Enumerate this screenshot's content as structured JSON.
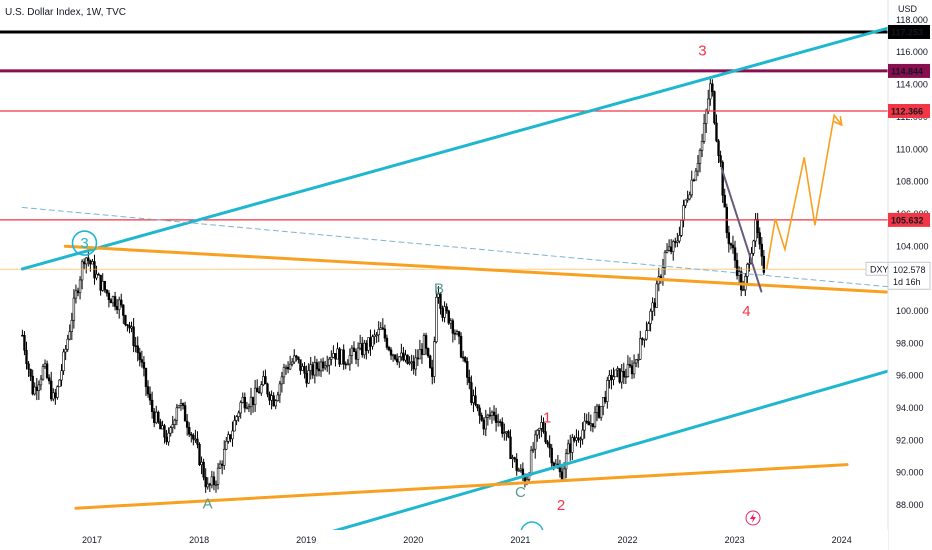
{
  "header": {
    "title": "U.S. Dollar Index, 1W, TVC"
  },
  "colors": {
    "background": "#ffffff",
    "candle_up": "#ffffff",
    "candle_down": "#000000",
    "channel": "#1fb7cf",
    "orange": "#f7a021",
    "red_level": "#f23645",
    "maroon_level": "#880e4f",
    "black_level": "#000000",
    "wave_red": "#f23645",
    "wave_teal": "#5a9a8f",
    "projection": "#f7a021",
    "grey_trend": "#6b5b7b",
    "dashed": "#7fb2cf"
  },
  "chart_data": {
    "type": "candlestick",
    "symbol": "DXY",
    "current_price": "102.578",
    "countdown": "1d 16h",
    "y_axis_unit": "USD",
    "ylim": [
      86.5,
      119.5
    ],
    "xlim": [
      2016.35,
      2024.6
    ],
    "y_ticks": [
      "88.000",
      "90.000",
      "92.000",
      "94.000",
      "96.000",
      "98.000",
      "100.000",
      "102.000",
      "104.000",
      "106.000",
      "108.000",
      "110.000",
      "112.000",
      "114.000",
      "116.000",
      "118.000"
    ],
    "x_ticks": [
      "2017",
      "2018",
      "2019",
      "2020",
      "2021",
      "2022",
      "2023",
      "2024"
    ],
    "price_levels": [
      {
        "label": "117.253",
        "value": 117.253,
        "color": "#000000"
      },
      {
        "label": "114.844",
        "value": 114.844,
        "color": "#880e4f"
      },
      {
        "label": "112.366",
        "value": 112.366,
        "color": "#f23645"
      },
      {
        "label": "105.632",
        "value": 105.632,
        "color": "#f23645"
      }
    ],
    "price_path": [
      [
        2016.35,
        98.5
      ],
      [
        2016.45,
        95.0
      ],
      [
        2016.55,
        96.5
      ],
      [
        2016.65,
        94.3
      ],
      [
        2016.75,
        97.5
      ],
      [
        2016.85,
        101.0
      ],
      [
        2016.93,
        103.5
      ],
      [
        2016.98,
        103.0
      ],
      [
        2017.05,
        102.0
      ],
      [
        2017.15,
        101.0
      ],
      [
        2017.25,
        100.5
      ],
      [
        2017.35,
        99.0
      ],
      [
        2017.45,
        97.0
      ],
      [
        2017.55,
        94.0
      ],
      [
        2017.65,
        92.5
      ],
      [
        2017.72,
        92.0
      ],
      [
        2017.8,
        94.5
      ],
      [
        2017.9,
        93.0
      ],
      [
        2018.0,
        91.0
      ],
      [
        2018.08,
        89.0
      ],
      [
        2018.15,
        89.5
      ],
      [
        2018.3,
        92.5
      ],
      [
        2018.4,
        94.5
      ],
      [
        2018.5,
        94.5
      ],
      [
        2018.6,
        95.5
      ],
      [
        2018.7,
        94.5
      ],
      [
        2018.8,
        96.5
      ],
      [
        2018.9,
        97.0
      ],
      [
        2019.0,
        96.0
      ],
      [
        2019.1,
        96.5
      ],
      [
        2019.25,
        97.5
      ],
      [
        2019.35,
        97.0
      ],
      [
        2019.5,
        97.5
      ],
      [
        2019.6,
        98.0
      ],
      [
        2019.7,
        98.8
      ],
      [
        2019.8,
        97.5
      ],
      [
        2019.9,
        97.0
      ],
      [
        2020.0,
        96.5
      ],
      [
        2020.1,
        98.0
      ],
      [
        2020.18,
        95.5
      ],
      [
        2020.22,
        102.0
      ],
      [
        2020.27,
        100.0
      ],
      [
        2020.35,
        99.5
      ],
      [
        2020.45,
        97.5
      ],
      [
        2020.55,
        94.5
      ],
      [
        2020.65,
        93.0
      ],
      [
        2020.75,
        93.8
      ],
      [
        2020.85,
        92.5
      ],
      [
        2020.95,
        90.5
      ],
      [
        2021.0,
        90.0
      ],
      [
        2021.05,
        89.5
      ],
      [
        2021.12,
        91.5
      ],
      [
        2021.2,
        93.0
      ],
      [
        2021.25,
        92.0
      ],
      [
        2021.32,
        90.5
      ],
      [
        2021.38,
        89.8
      ],
      [
        2021.45,
        91.5
      ],
      [
        2021.55,
        92.5
      ],
      [
        2021.65,
        93.0
      ],
      [
        2021.75,
        94.0
      ],
      [
        2021.85,
        96.0
      ],
      [
        2021.95,
        96.0
      ],
      [
        2022.05,
        96.5
      ],
      [
        2022.15,
        98.5
      ],
      [
        2022.25,
        100.5
      ],
      [
        2022.35,
        103.5
      ],
      [
        2022.45,
        104.0
      ],
      [
        2022.55,
        107.0
      ],
      [
        2022.62,
        108.5
      ],
      [
        2022.7,
        110.5
      ],
      [
        2022.75,
        113.0
      ],
      [
        2022.78,
        114.1
      ],
      [
        2022.82,
        111.5
      ],
      [
        2022.87,
        109.0
      ],
      [
        2022.92,
        105.0
      ],
      [
        2022.97,
        104.0
      ],
      [
        2023.03,
        102.5
      ],
      [
        2023.08,
        101.0
      ],
      [
        2023.14,
        103.5
      ],
      [
        2023.2,
        105.3
      ],
      [
        2023.25,
        103.0
      ],
      [
        2023.28,
        102.6
      ]
    ],
    "annotations": {
      "waves": [
        {
          "label": "3",
          "x": 2016.93,
          "y": 104.2,
          "color": "#1fb7cf",
          "circled": true
        },
        {
          "label": "B",
          "x": 2020.24,
          "y": 101.4,
          "color": "#5a9a8f"
        },
        {
          "label": "A",
          "x": 2018.08,
          "y": 88.1,
          "color": "#5a9a8f"
        },
        {
          "label": "C",
          "x": 2021.0,
          "y": 88.8,
          "color": "#5a9a8f"
        },
        {
          "label": "1",
          "x": 2021.25,
          "y": 93.4,
          "color": "#f23645"
        },
        {
          "label": "2",
          "x": 2021.38,
          "y": 88.0,
          "color": "#f23645"
        },
        {
          "label": "3",
          "x": 2022.7,
          "y": 116.1,
          "color": "#f23645"
        },
        {
          "label": "4",
          "x": 2023.11,
          "y": 100.0,
          "color": "#f23645"
        }
      ],
      "trendlines": [
        {
          "name": "upper-channel",
          "color": "#1fb7cf",
          "width": 3,
          "points": [
            [
              2016.35,
              102.6
            ],
            [
              2024.6,
              117.8
            ]
          ]
        },
        {
          "name": "lower-channel",
          "color": "#1fb7cf",
          "width": 3,
          "points": [
            [
              2018.95,
              85.8
            ],
            [
              2024.6,
              96.6
            ]
          ]
        },
        {
          "name": "orange-support",
          "color": "#f7a021",
          "width": 3,
          "points": [
            [
              2016.75,
              104.0
            ],
            [
              2024.6,
              101.1
            ]
          ]
        },
        {
          "name": "orange-bottom",
          "color": "#f7a021",
          "width": 3,
          "points": [
            [
              2016.85,
              87.8
            ],
            [
              2024.05,
              90.5
            ]
          ]
        },
        {
          "name": "grey-down",
          "color": "#6b5b7b",
          "width": 2,
          "points": [
            [
              2022.88,
              108.8
            ],
            [
              2023.25,
              101.2
            ]
          ]
        },
        {
          "name": "dashed-trend",
          "color": "#7fb2cf",
          "width": 1,
          "dashed": true,
          "points": [
            [
              2016.35,
              106.4
            ],
            [
              2024.6,
              101.4
            ]
          ]
        }
      ],
      "projection": [
        [
          2023.3,
          102.6
        ],
        [
          2023.38,
          105.7
        ],
        [
          2023.47,
          103.8
        ],
        [
          2023.65,
          109.5
        ],
        [
          2023.75,
          105.3
        ],
        [
          2023.93,
          112.1
        ],
        [
          2024.0,
          111.5
        ]
      ],
      "thin_line": {
        "value": 102.578,
        "color": "#ffb74d"
      }
    }
  }
}
